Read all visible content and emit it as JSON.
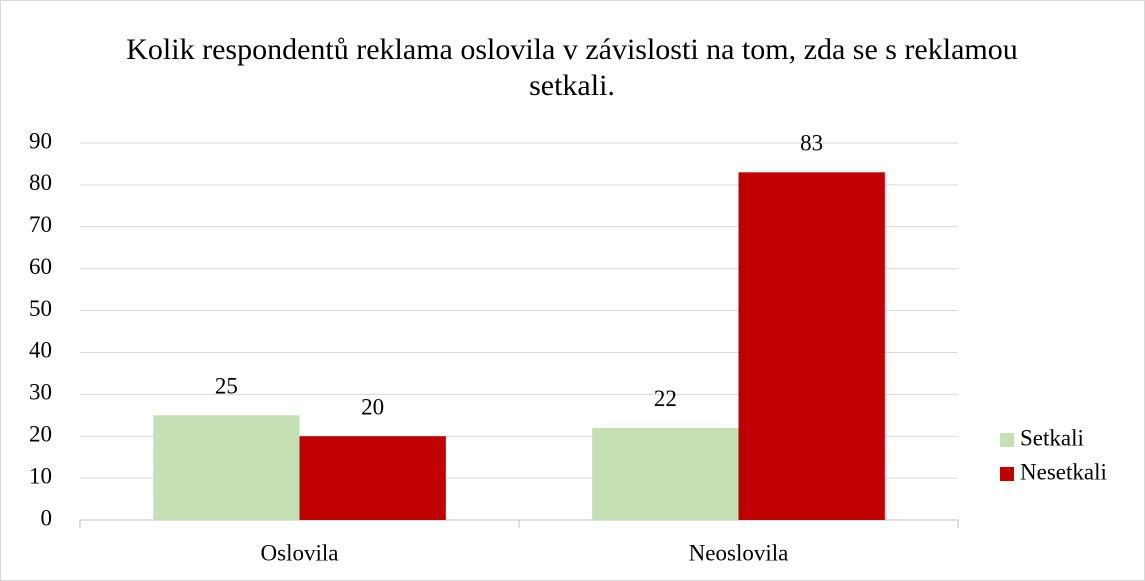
{
  "chart_data": {
    "type": "bar",
    "title": "Kolik respondentů reklama oslovila v závislosti na tom, zda se s reklamou setkali.",
    "categories": [
      "Oslovila",
      "Neoslovila"
    ],
    "series": [
      {
        "name": "Setkali",
        "color": "#c5e0b4",
        "values": [
          25,
          22
        ]
      },
      {
        "name": "Nesetkali",
        "color": "#c00000",
        "values": [
          20,
          83
        ]
      }
    ],
    "ylim": [
      0,
      90
    ],
    "yticks": [
      0,
      10,
      20,
      30,
      40,
      50,
      60,
      70,
      80,
      90
    ],
    "grid": true,
    "legend": "right"
  }
}
